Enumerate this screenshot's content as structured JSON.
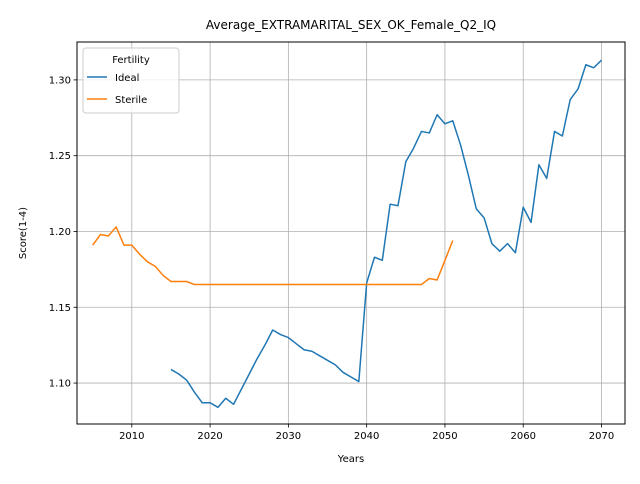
{
  "chart_data": {
    "type": "line",
    "title": "Average_EXTRAMARITAL_SEX_OK_Female_Q2_IQ",
    "xlabel": "Years",
    "ylabel": "Score(1-4)",
    "xlim": [
      2003,
      2073
    ],
    "ylim": [
      1.073,
      1.325
    ],
    "xticks": [
      2010,
      2020,
      2030,
      2040,
      2050,
      2060,
      2070
    ],
    "yticks": [
      1.1,
      1.15,
      1.2,
      1.25,
      1.3
    ],
    "ytick_labels": [
      "1.10",
      "1.15",
      "1.20",
      "1.25",
      "1.30"
    ],
    "grid": true,
    "legend": {
      "title": "Fertility",
      "position": "top-left"
    },
    "series": [
      {
        "name": "Ideal",
        "color": "#1f77b4",
        "x": [
          2015,
          2016,
          2017,
          2018,
          2019,
          2020,
          2021,
          2022,
          2023,
          2024,
          2025,
          2026,
          2027,
          2028,
          2029,
          2030,
          2031,
          2032,
          2033,
          2034,
          2035,
          2036,
          2037,
          2038,
          2039,
          2040,
          2041,
          2042,
          2043,
          2044,
          2045,
          2046,
          2047,
          2048,
          2049,
          2050,
          2051,
          2052,
          2053,
          2054,
          2055,
          2056,
          2057,
          2058,
          2059,
          2060,
          2061,
          2062,
          2063,
          2064,
          2065,
          2066,
          2067,
          2068,
          2069,
          2070
        ],
        "y": [
          1.109,
          1.106,
          1.102,
          1.094,
          1.087,
          1.087,
          1.084,
          1.09,
          1.086,
          1.096,
          1.106,
          1.116,
          1.125,
          1.135,
          1.132,
          1.13,
          1.126,
          1.122,
          1.121,
          1.118,
          1.115,
          1.112,
          1.107,
          1.104,
          1.101,
          1.166,
          1.183,
          1.181,
          1.218,
          1.217,
          1.246,
          1.255,
          1.266,
          1.265,
          1.277,
          1.271,
          1.273,
          1.257,
          1.237,
          1.215,
          1.209,
          1.192,
          1.187,
          1.192,
          1.186,
          1.216,
          1.206,
          1.244,
          1.235,
          1.266,
          1.263,
          1.287,
          1.294,
          1.31,
          1.308,
          1.313
        ]
      },
      {
        "name": "Sterile",
        "color": "#ff7f0e",
        "x": [
          2005,
          2006,
          2007,
          2008,
          2009,
          2010,
          2011,
          2012,
          2013,
          2014,
          2015,
          2016,
          2017,
          2018,
          2019,
          2020,
          2021,
          2022,
          2023,
          2024,
          2025,
          2026,
          2027,
          2028,
          2029,
          2030,
          2031,
          2032,
          2033,
          2034,
          2035,
          2036,
          2037,
          2038,
          2039,
          2040,
          2041,
          2042,
          2043,
          2044,
          2045,
          2046,
          2047,
          2048,
          2049,
          2050,
          2051
        ],
        "y": [
          1.191,
          1.198,
          1.197,
          1.203,
          1.191,
          1.191,
          1.185,
          1.18,
          1.177,
          1.171,
          1.167,
          1.167,
          1.167,
          1.165,
          1.165,
          1.165,
          1.165,
          1.165,
          1.165,
          1.165,
          1.165,
          1.165,
          1.165,
          1.165,
          1.165,
          1.165,
          1.165,
          1.165,
          1.165,
          1.165,
          1.165,
          1.165,
          1.165,
          1.165,
          1.165,
          1.165,
          1.165,
          1.165,
          1.165,
          1.165,
          1.165,
          1.165,
          1.165,
          1.169,
          1.168,
          1.181,
          1.194
        ]
      }
    ]
  }
}
